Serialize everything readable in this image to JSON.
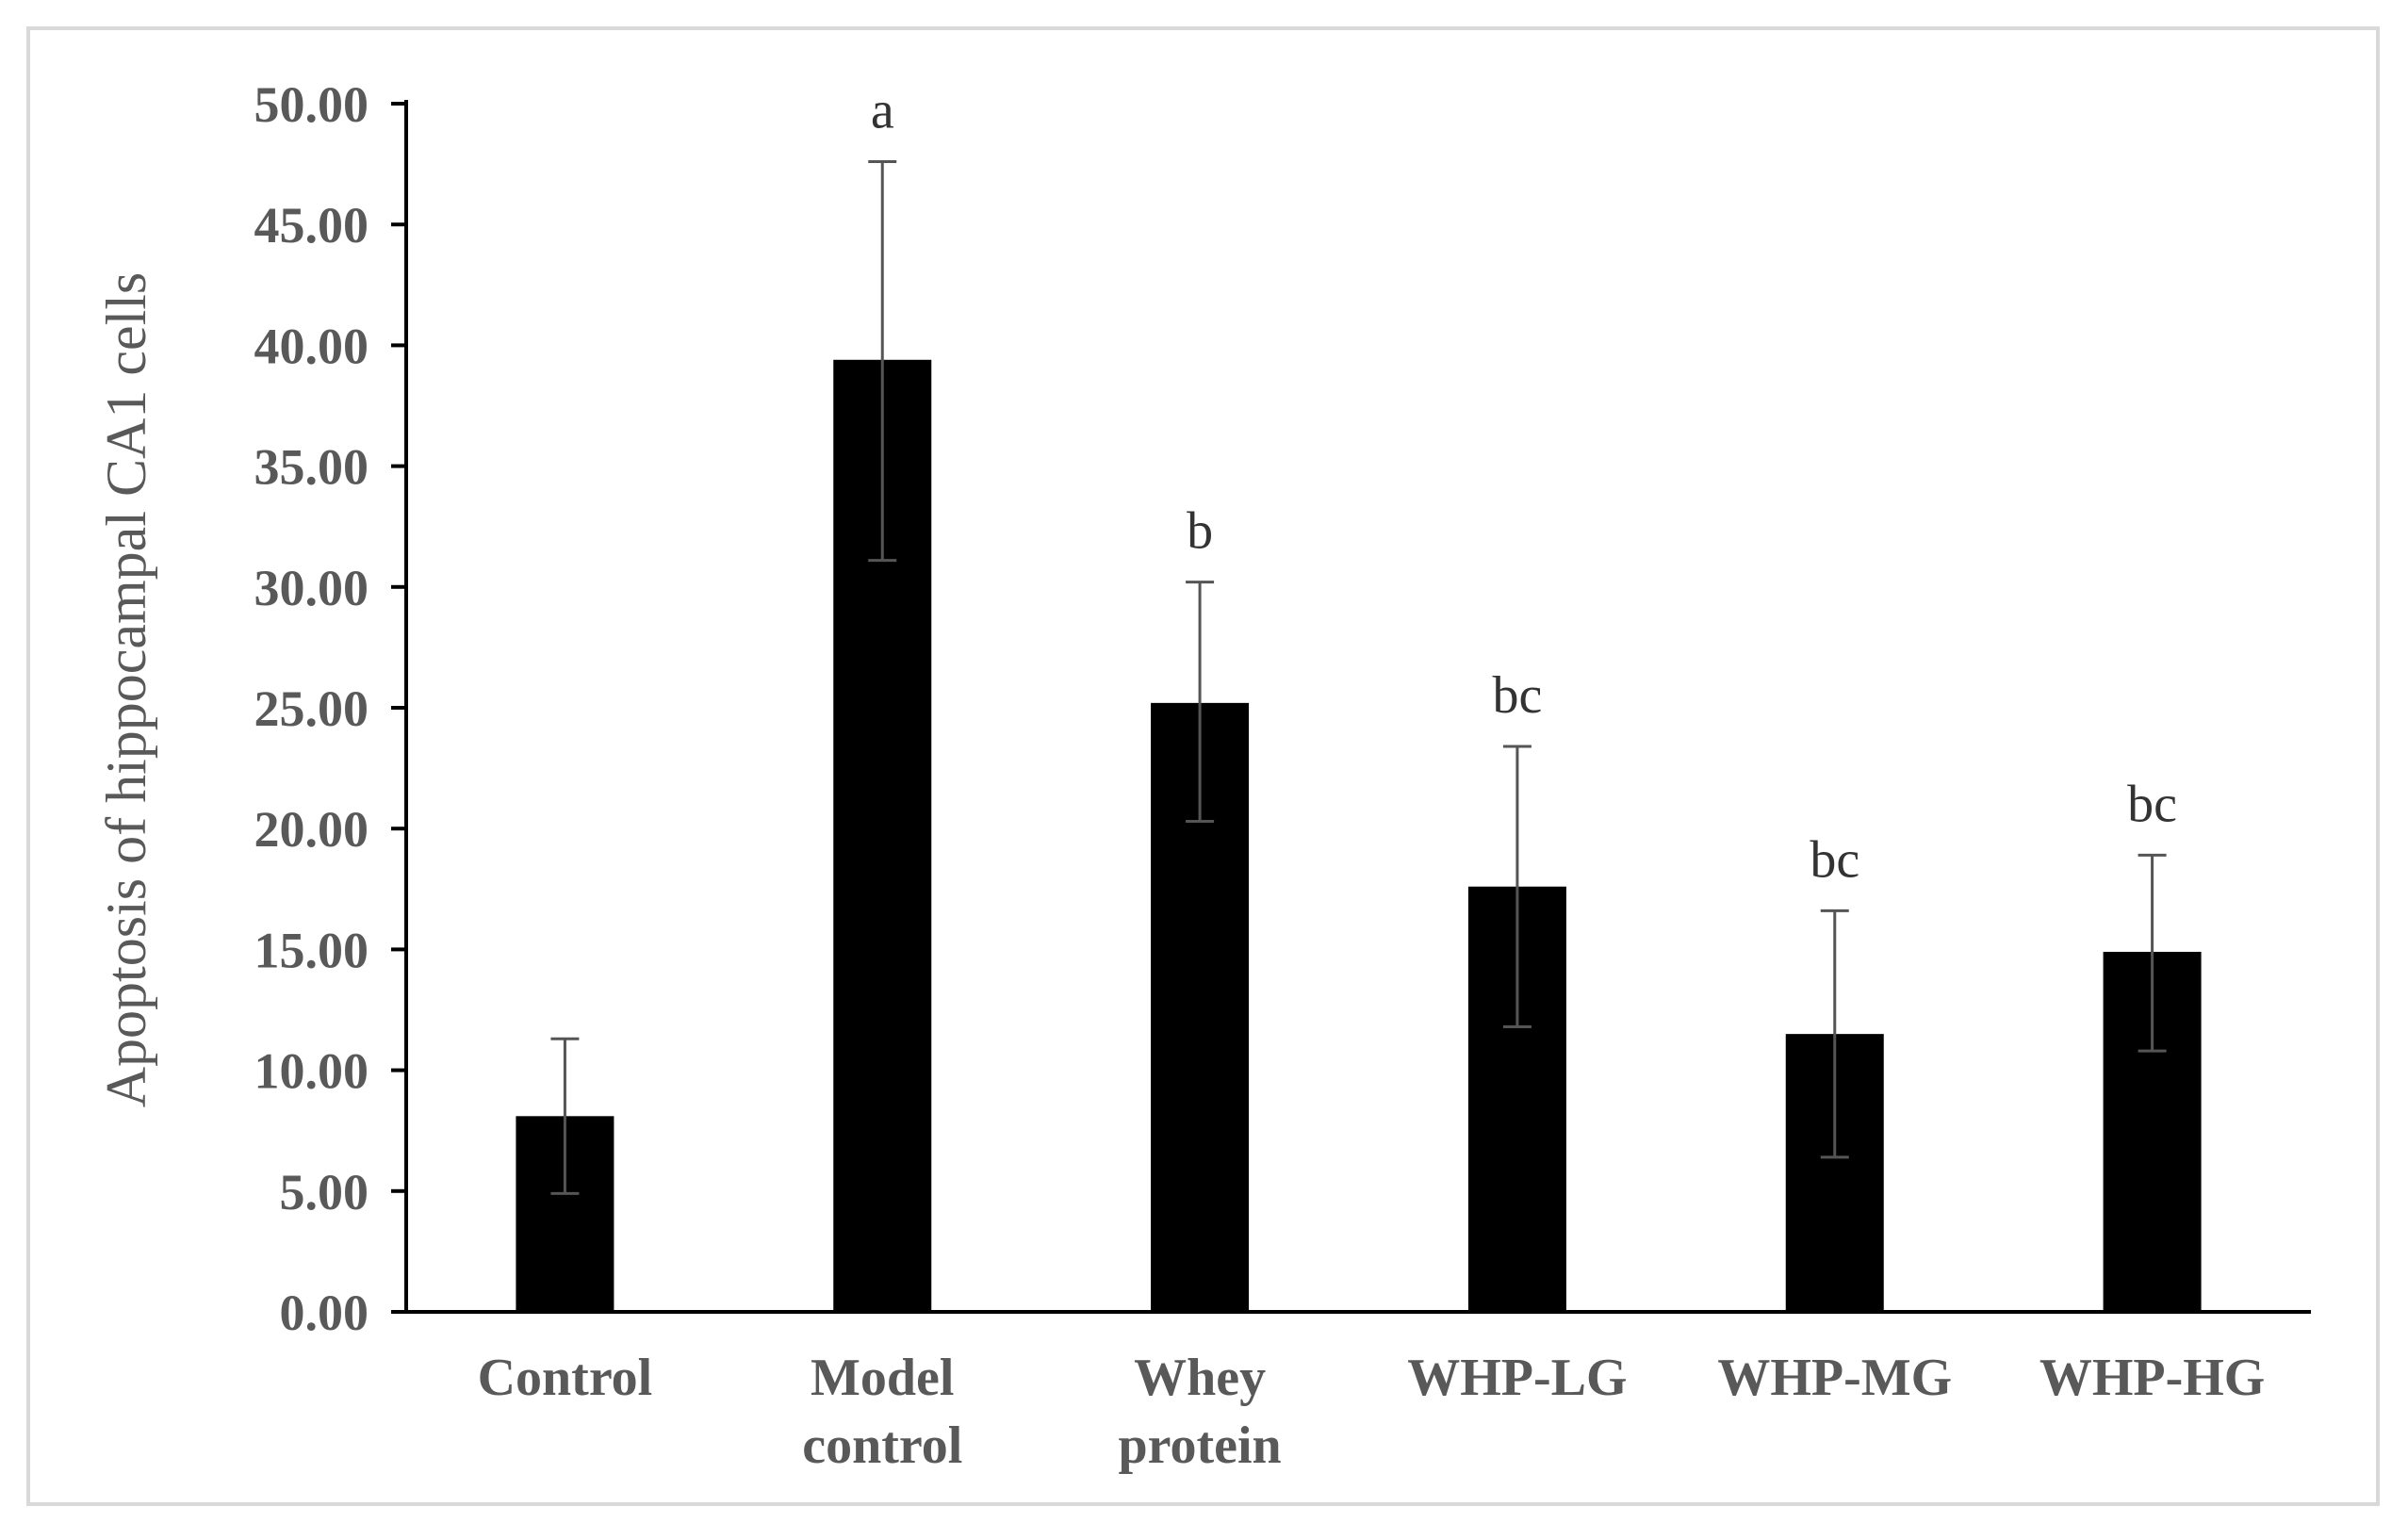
{
  "chart_data": {
    "type": "bar",
    "title": "",
    "xlabel": "",
    "ylabel": "Apoptosis of hippocampal CA1 cells",
    "ylim": [
      0,
      50
    ],
    "yticks": [
      "0.00",
      "5.00",
      "10.00",
      "15.00",
      "20.00",
      "25.00",
      "30.00",
      "35.00",
      "40.00",
      "45.00",
      "50.00"
    ],
    "grid": false,
    "categories": [
      [
        "Control"
      ],
      [
        "Model",
        "control"
      ],
      [
        "Whey",
        "protein"
      ],
      [
        "WHP-LG"
      ],
      [
        "WHP-MG"
      ],
      [
        "WHP-HG"
      ]
    ],
    "values": [
      8.1,
      39.4,
      25.2,
      17.6,
      11.5,
      14.9
    ],
    "error_low": [
      4.9,
      31.1,
      20.3,
      11.8,
      6.4,
      10.8
    ],
    "error_high": [
      11.3,
      47.6,
      30.2,
      23.4,
      16.6,
      18.9
    ],
    "significance": [
      "",
      "a",
      "b",
      "bc",
      "bc",
      "bc"
    ],
    "bar_color": "#000000",
    "axis_color": "#000000",
    "errorbar_color": "#555555",
    "label_color": "#595959"
  }
}
